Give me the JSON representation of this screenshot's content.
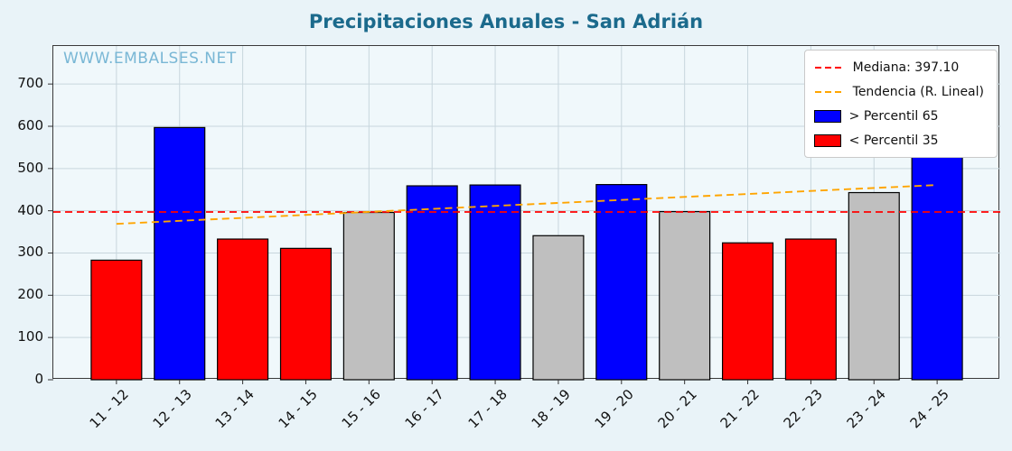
{
  "watermark": "WWW.EMBALSES.NET",
  "chart_data": {
    "type": "bar",
    "title": "Precipitaciones Anuales - San Adrián",
    "xlabel": "",
    "ylabel": "",
    "categories": [
      "11 - 12",
      "12 - 13",
      "13 - 14",
      "14 - 15",
      "15 - 16",
      "16 - 17",
      "17 - 18",
      "18 - 19",
      "19 - 20",
      "20 - 21",
      "21 - 22",
      "22 - 23",
      "23 - 24",
      "24 - 25"
    ],
    "values": [
      283,
      597,
      333,
      311,
      396,
      459,
      461,
      341,
      462,
      398,
      324,
      333,
      443,
      660
    ],
    "bar_classes": [
      "below",
      "above",
      "below",
      "below",
      "mid",
      "above",
      "above",
      "mid",
      "above",
      "mid",
      "below",
      "below",
      "mid",
      "above"
    ],
    "colors": {
      "above": "#0000ff",
      "below": "#ff0000",
      "mid": "#bfbfbf",
      "bar_edge": "#000000",
      "grid": "#c8d6dd",
      "axis": "#333333"
    },
    "median": {
      "value": 397.1,
      "label": "Mediana: 397.10",
      "color": "#ff0000",
      "style": "dashed"
    },
    "trend": {
      "label": "Tendencia (R. Lineal)",
      "color": "#ffa500",
      "style": "dashed",
      "start": 369,
      "end": 461
    },
    "legend": [
      {
        "type": "line",
        "color": "#ff0000",
        "label": "Mediana: 397.10"
      },
      {
        "type": "line",
        "color": "#ffa500",
        "label": "Tendencia (R. Lineal)"
      },
      {
        "type": "patch",
        "color": "#0000ff",
        "label": "> Percentil 65"
      },
      {
        "type": "patch",
        "color": "#ff0000",
        "label": "< Percentil 35"
      }
    ],
    "ylim": [
      0,
      790
    ],
    "yticks": [
      0,
      100,
      200,
      300,
      400,
      500,
      600,
      700
    ],
    "grid": true,
    "legend_position": "upper right"
  }
}
